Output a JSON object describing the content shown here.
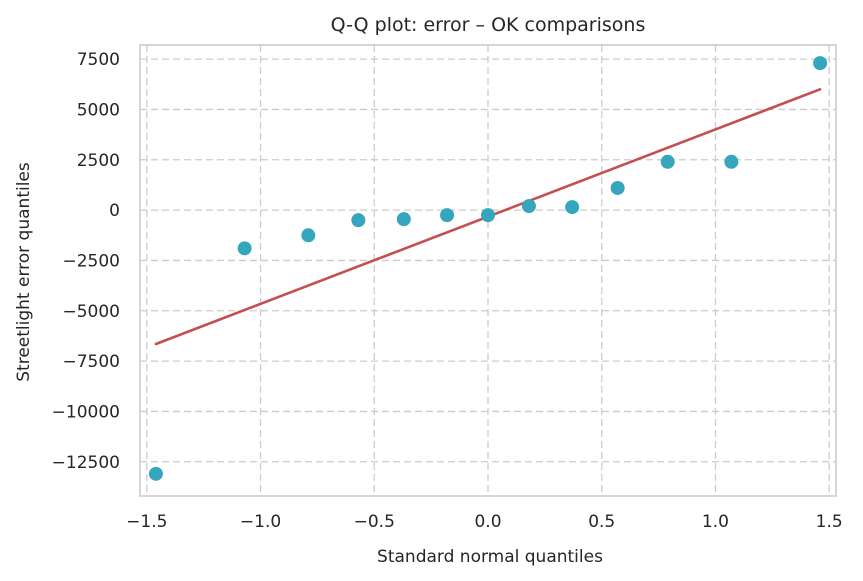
{
  "chart_data": {
    "type": "scatter",
    "title": "Q-Q plot: error – OK comparisons",
    "xlabel": "Standard normal quantiles",
    "ylabel": "Streetlight error quantiles",
    "xlim": [
      -1.53,
      1.53
    ],
    "ylim": [
      -14200,
      8200
    ],
    "xticks": [
      -1.5,
      -1.0,
      -0.5,
      0.0,
      0.5,
      1.0,
      1.5
    ],
    "xtick_labels": [
      "−1.5",
      "−1.0",
      "−0.5",
      "0.0",
      "0.5",
      "1.0",
      "1.5"
    ],
    "yticks": [
      7500,
      5000,
      2500,
      0,
      -2500,
      -5000,
      -7500,
      -10000,
      -12500
    ],
    "ytick_labels": [
      "7500",
      "5000",
      "2500",
      "0",
      "−2500",
      "−5000",
      "−7500",
      "−10000",
      "−12500"
    ],
    "grid": true,
    "points": {
      "color": "#36a5be",
      "x": [
        -1.46,
        -1.07,
        -0.79,
        -0.57,
        -0.37,
        -0.18,
        0.0,
        0.18,
        0.37,
        0.57,
        0.79,
        1.07,
        1.46
      ],
      "y": [
        -13100,
        -1900,
        -1250,
        -500,
        -450,
        -250,
        -250,
        200,
        150,
        1100,
        2400,
        2400,
        7300
      ]
    },
    "reference_line": {
      "color": "#c44e52",
      "x": [
        -1.46,
        1.46
      ],
      "y": [
        -6650,
        6000
      ]
    }
  }
}
